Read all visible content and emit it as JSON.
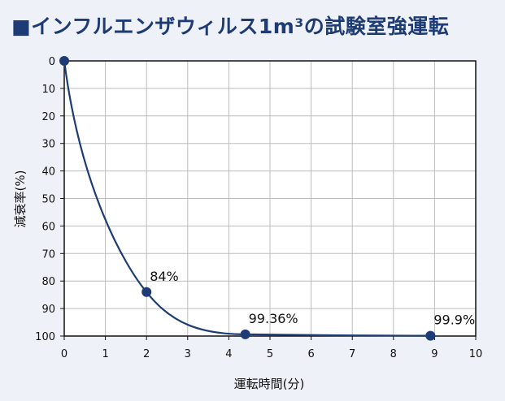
{
  "colors": {
    "background": "#eef1f7",
    "title": "#1d3b74",
    "series": "#1d3b74",
    "grid": "#cfcfcf",
    "plot_bg": "#ffffff",
    "frame": "#111111"
  },
  "chart_data": {
    "type": "line",
    "title": "■インフルエンザウィルス1m³の試験室強運転",
    "xlabel": "運転時間(分)",
    "ylabel": "減衰率(%)",
    "xlim": [
      0,
      10
    ],
    "ylim": [
      0,
      100
    ],
    "y_inverted": true,
    "grid": true,
    "x_ticks": [
      "0",
      "1",
      "2",
      "3",
      "4",
      "5",
      "6",
      "7",
      "8",
      "9",
      "10"
    ],
    "y_ticks": [
      "0",
      "10",
      "20",
      "30",
      "40",
      "50",
      "60",
      "70",
      "80",
      "90",
      "100"
    ],
    "series": [
      {
        "smooth": true,
        "points": [
          {
            "x": 0,
            "y": 0,
            "label": ""
          },
          {
            "x": 2,
            "y": 84,
            "label": "84%"
          },
          {
            "x": 4.4,
            "y": 99.36,
            "label": "99.36%"
          },
          {
            "x": 8.9,
            "y": 99.9,
            "label": "99.9%"
          }
        ]
      }
    ]
  }
}
